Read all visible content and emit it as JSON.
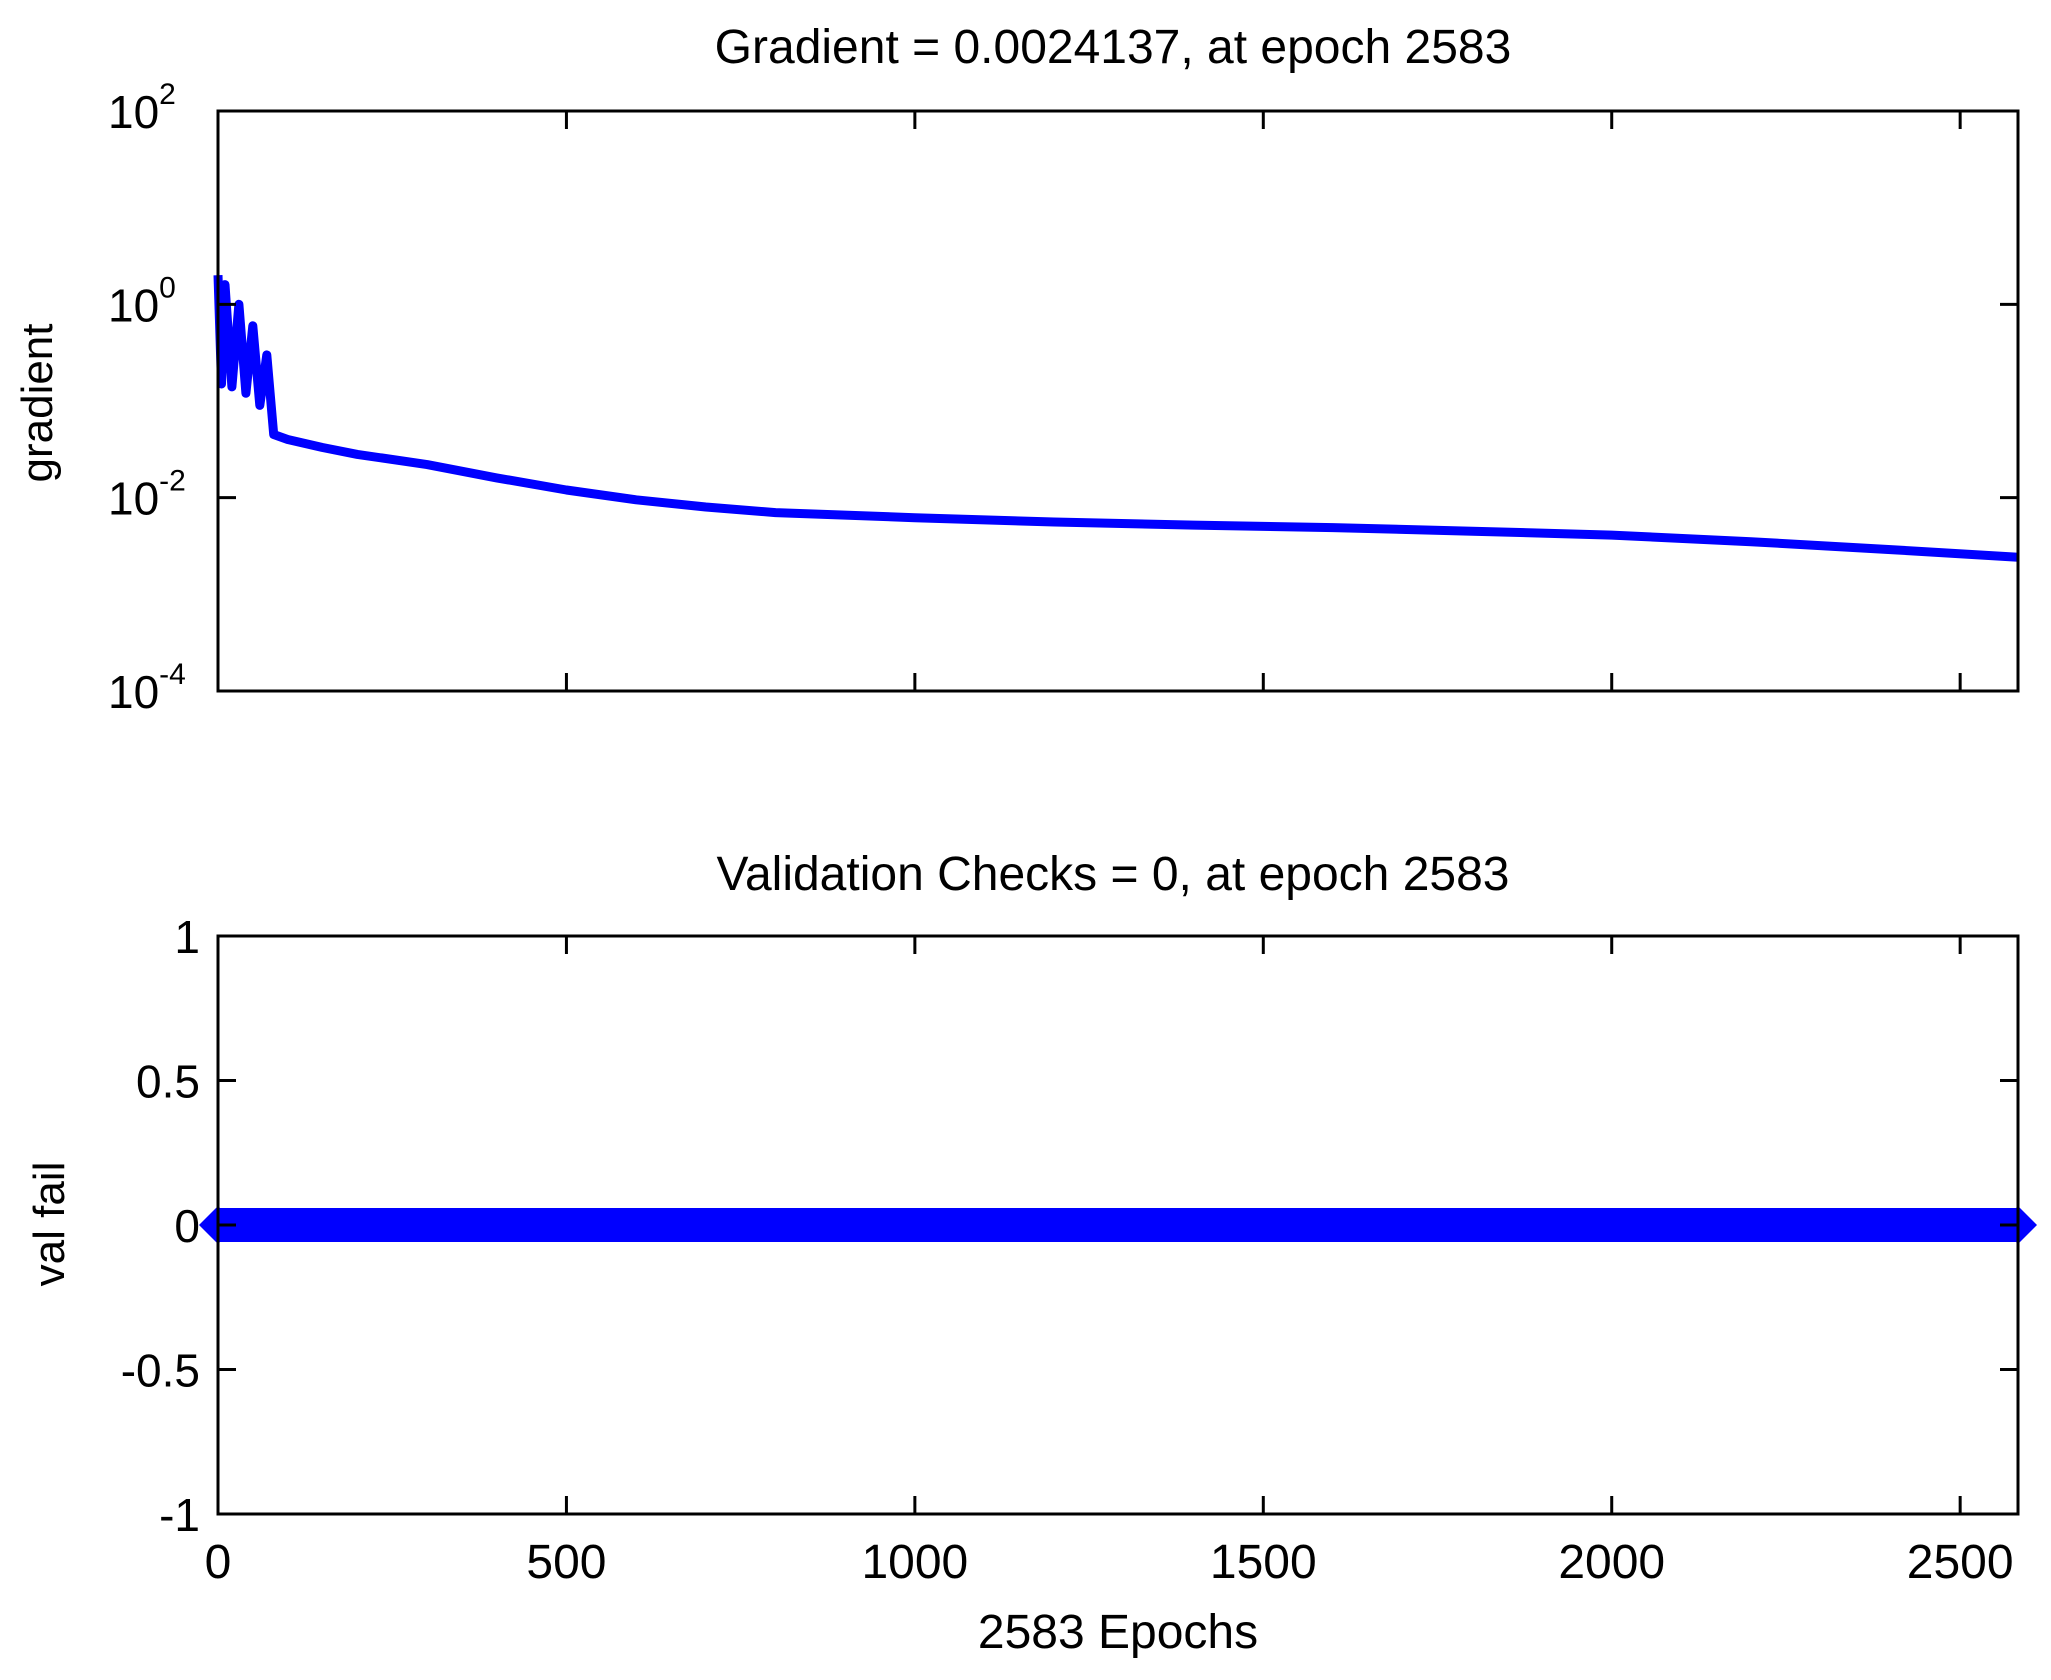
{
  "chart_data": [
    {
      "type": "line",
      "title": "Gradient = 0.0024137, at epoch 2583",
      "xlabel": "",
      "ylabel": "gradient",
      "yscale": "log",
      "xlim": [
        0,
        2583
      ],
      "ylim": [
        0.0001,
        100
      ],
      "grid": false,
      "xticks": [
        0,
        500,
        1000,
        1500,
        2000,
        2500
      ],
      "xtick_labels": [],
      "yticks": [
        {
          "value": 100,
          "base": "10",
          "exp": "2"
        },
        {
          "value": 1,
          "base": "10",
          "exp": "0"
        },
        {
          "value": 0.01,
          "base": "10",
          "exp": "-2"
        },
        {
          "value": 0.0001,
          "base": "10",
          "exp": "-4"
        }
      ],
      "series": [
        {
          "color": "#0000ff",
          "x": [
            0,
            5,
            10,
            20,
            30,
            40,
            50,
            60,
            70,
            80,
            100,
            150,
            200,
            300,
            400,
            500,
            600,
            700,
            800,
            1000,
            1200,
            1400,
            1600,
            1800,
            2000,
            2200,
            2400,
            2583
          ],
          "y": [
            2.0,
            0.15,
            1.6,
            0.14,
            1.0,
            0.12,
            0.6,
            0.09,
            0.3,
            0.045,
            0.04,
            0.033,
            0.028,
            0.022,
            0.016,
            0.012,
            0.0095,
            0.008,
            0.007,
            0.0062,
            0.0056,
            0.0052,
            0.0049,
            0.0045,
            0.0041,
            0.0035,
            0.0029,
            0.0024137
          ]
        }
      ]
    },
    {
      "type": "scatter",
      "title": "Validation Checks = 0, at epoch 2583",
      "xlabel": "2583 Epochs",
      "ylabel": "val fail",
      "xlim": [
        0,
        2583
      ],
      "ylim": [
        -1,
        1
      ],
      "grid": false,
      "xticks": [
        0,
        500,
        1000,
        1500,
        2000,
        2500
      ],
      "xtick_labels": [
        "0",
        "500",
        "1000",
        "1500",
        "2000",
        "2500"
      ],
      "yticks": [
        1,
        0.5,
        0,
        -0.5,
        -1
      ],
      "ytick_labels": [
        "1",
        "0.5",
        "0",
        "-0.5",
        "-1"
      ],
      "series": [
        {
          "color": "#0000ff",
          "marker": "diamond",
          "x_range": [
            0,
            2583
          ],
          "y": 0
        }
      ]
    }
  ]
}
